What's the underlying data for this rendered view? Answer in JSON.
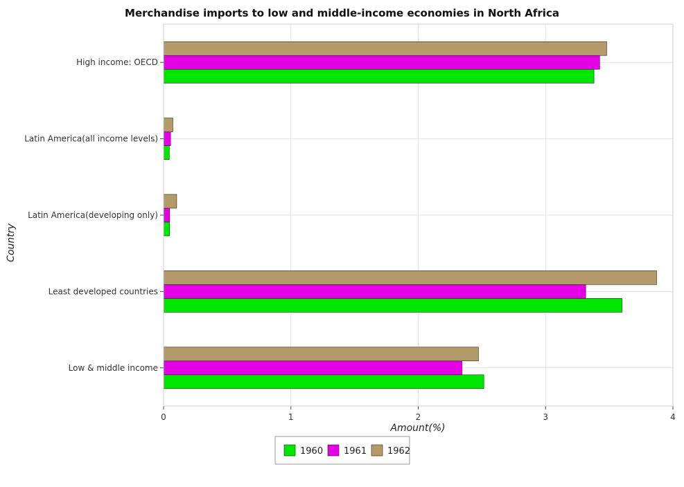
{
  "chart_data": {
    "type": "bar",
    "orientation": "horizontal",
    "title": "Merchandise imports to low and middle-income economies in North Africa",
    "xlabel": "Amount(%)",
    "ylabel": "Country",
    "xlim": [
      0,
      4
    ],
    "xticks": [
      "0",
      "1",
      "2",
      "3",
      "4"
    ],
    "grid": true,
    "legend_position": "bottom",
    "categories": [
      "High income: OECD",
      "Latin America(all income levels)",
      "Latin America(developing only)",
      "Least developed countries",
      "Low & middle income"
    ],
    "series": [
      {
        "name": "1960",
        "color": "#00e600",
        "values": [
          3.38,
          0.045,
          0.047,
          3.6,
          2.515
        ]
      },
      {
        "name": "1961",
        "color": "#e600e6",
        "values": [
          3.425,
          0.055,
          0.048,
          3.315,
          2.343
        ]
      },
      {
        "name": "1962",
        "color": "#b59a6a",
        "values": [
          3.48,
          0.073,
          0.103,
          3.872,
          2.473
        ]
      }
    ]
  }
}
